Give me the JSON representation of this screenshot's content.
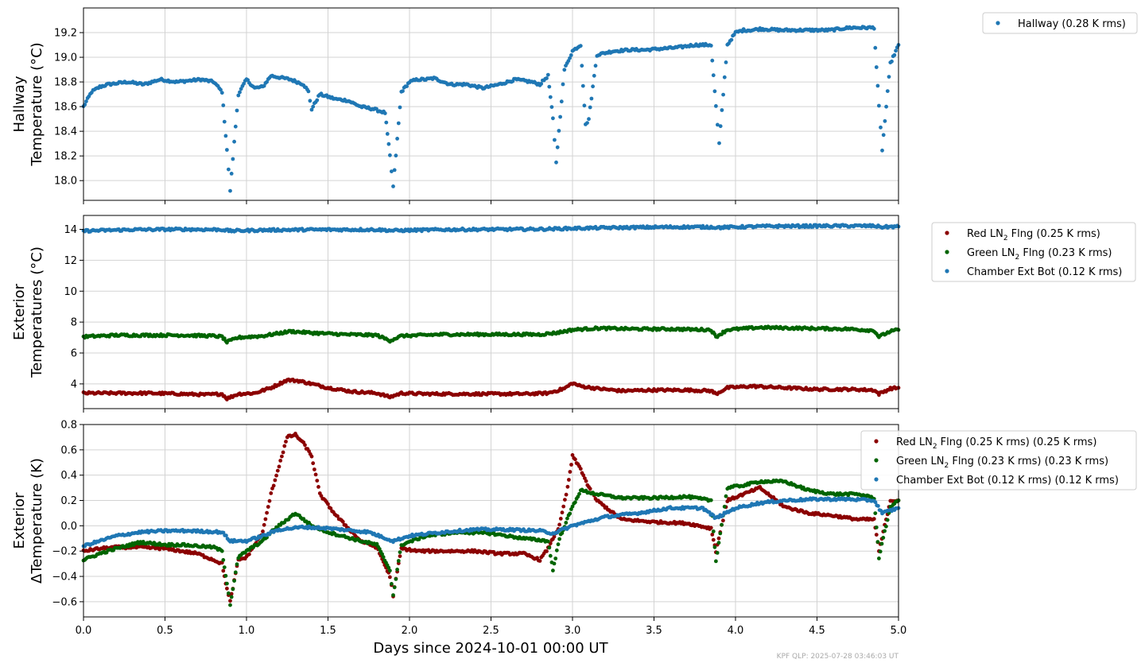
{
  "figure": {
    "xlabel": "Days since 2024-10-01 00:00 UT",
    "footer": "KPF QLP: 2025-07-28 03:46:03 UT",
    "xticks": [
      0.0,
      0.5,
      1.0,
      1.5,
      2.0,
      2.5,
      3.0,
      3.5,
      4.0,
      4.5,
      5.0
    ],
    "xtick_labels": [
      "0.0",
      "0.5",
      "1.0",
      "1.5",
      "2.0",
      "2.5",
      "3.0",
      "3.5",
      "4.0",
      "4.5",
      "5.0"
    ],
    "xlim": [
      0,
      5
    ]
  },
  "chart_data": [
    {
      "type": "scatter",
      "ylabel_lines": [
        "Hallway",
        "Temperature (°C)"
      ],
      "ylim": [
        17.84,
        19.4
      ],
      "yticks": [
        18.0,
        18.2,
        18.4,
        18.6,
        18.8,
        19.0,
        19.2
      ],
      "ytick_labels": [
        "18.0",
        "18.2",
        "18.4",
        "18.6",
        "18.8",
        "19.0",
        "19.2"
      ],
      "grid": true,
      "legend_position": "outside-right-top",
      "series": [
        {
          "name": "Hallway (0.28 K rms)",
          "color": "#1f77b4",
          "x": [
            0.0,
            0.05,
            0.1,
            0.15,
            0.27,
            0.37,
            0.47,
            0.57,
            0.72,
            0.8,
            0.85,
            0.88,
            0.9,
            0.95,
            1.0,
            1.05,
            1.1,
            1.15,
            1.27,
            1.35,
            1.38,
            1.4,
            1.45,
            1.55,
            1.62,
            1.7,
            1.78,
            1.85,
            1.88,
            1.9,
            1.95,
            2.0,
            2.05,
            2.1,
            2.15,
            2.25,
            2.35,
            2.45,
            2.55,
            2.65,
            2.75,
            2.8,
            2.85,
            2.88,
            2.9,
            2.95,
            3.0,
            3.05,
            3.08,
            3.1,
            3.15,
            3.25,
            3.35,
            3.45,
            3.55,
            3.65,
            3.75,
            3.8,
            3.85,
            3.88,
            3.9,
            3.95,
            4.0,
            4.05,
            4.1,
            4.15,
            4.28,
            4.38,
            4.48,
            4.58,
            4.7,
            4.78,
            4.85,
            4.88,
            4.9,
            4.95,
            5.0
          ],
          "y": [
            18.6,
            18.72,
            18.76,
            18.78,
            18.8,
            18.78,
            18.82,
            18.8,
            18.82,
            18.8,
            18.72,
            18.25,
            17.92,
            18.7,
            18.82,
            18.75,
            18.76,
            18.85,
            18.82,
            18.78,
            18.72,
            18.58,
            18.7,
            18.66,
            18.65,
            18.6,
            18.58,
            18.55,
            18.2,
            17.95,
            18.72,
            18.8,
            18.82,
            18.82,
            18.83,
            18.78,
            18.78,
            18.75,
            18.78,
            18.82,
            18.8,
            18.78,
            18.85,
            18.5,
            18.15,
            18.9,
            19.05,
            19.1,
            18.45,
            18.5,
            19.02,
            19.05,
            19.06,
            19.06,
            19.07,
            19.08,
            19.1,
            19.1,
            19.1,
            18.6,
            18.3,
            19.1,
            19.2,
            19.22,
            19.22,
            19.23,
            19.22,
            19.22,
            19.22,
            19.22,
            19.24,
            19.24,
            19.24,
            18.6,
            18.25,
            18.95,
            19.1
          ]
        }
      ]
    },
    {
      "type": "scatter",
      "ylabel_lines": [
        "Exterior",
        "Temperatures (°C)"
      ],
      "ylim": [
        2.4,
        14.9
      ],
      "yticks": [
        4,
        6,
        8,
        10,
        12,
        14
      ],
      "ytick_labels": [
        "4",
        "6",
        "8",
        "10",
        "12",
        "14"
      ],
      "grid": true,
      "legend_position": "outside-right-top",
      "series": [
        {
          "name_parts": [
            "Red LN",
            "2",
            " Flng (0.25 K rms)"
          ],
          "color": "#8b0000",
          "x": [
            0.0,
            0.2,
            0.4,
            0.6,
            0.75,
            0.85,
            0.88,
            0.95,
            1.05,
            1.15,
            1.25,
            1.32,
            1.4,
            1.5,
            1.65,
            1.8,
            1.88,
            1.95,
            2.1,
            2.3,
            2.5,
            2.7,
            2.85,
            2.95,
            3.0,
            3.05,
            3.15,
            3.3,
            3.5,
            3.7,
            3.85,
            3.88,
            3.95,
            4.1,
            4.3,
            4.5,
            4.7,
            4.85,
            4.88,
            4.95,
            5.0
          ],
          "y": [
            3.4,
            3.4,
            3.4,
            3.35,
            3.3,
            3.35,
            3.05,
            3.35,
            3.4,
            3.75,
            4.25,
            4.2,
            4.0,
            3.75,
            3.5,
            3.4,
            3.15,
            3.4,
            3.35,
            3.35,
            3.35,
            3.35,
            3.4,
            3.7,
            4.05,
            3.85,
            3.7,
            3.55,
            3.6,
            3.6,
            3.55,
            3.35,
            3.75,
            3.85,
            3.75,
            3.65,
            3.65,
            3.6,
            3.35,
            3.7,
            3.75
          ]
        },
        {
          "name_parts": [
            "Green LN",
            "2",
            " Flng (0.23 K rms)"
          ],
          "color": "#006400",
          "x": [
            0.0,
            0.2,
            0.4,
            0.6,
            0.8,
            0.85,
            0.88,
            0.95,
            1.1,
            1.27,
            1.4,
            1.6,
            1.8,
            1.88,
            1.95,
            2.2,
            2.5,
            2.8,
            2.9,
            3.0,
            3.15,
            3.4,
            3.6,
            3.85,
            3.88,
            3.95,
            4.15,
            4.4,
            4.7,
            4.85,
            4.88,
            4.95,
            5.0
          ],
          "y": [
            7.05,
            7.15,
            7.15,
            7.15,
            7.1,
            7.05,
            6.7,
            7.0,
            7.1,
            7.4,
            7.3,
            7.2,
            7.15,
            6.8,
            7.1,
            7.2,
            7.2,
            7.2,
            7.3,
            7.5,
            7.6,
            7.55,
            7.55,
            7.5,
            7.05,
            7.5,
            7.65,
            7.6,
            7.55,
            7.45,
            7.05,
            7.4,
            7.5
          ]
        },
        {
          "name": "Chamber Ext Bot (0.12 K rms)",
          "color": "#1f77b4",
          "x": [
            0.0,
            0.3,
            0.6,
            0.85,
            0.9,
            1.1,
            1.4,
            1.8,
            1.9,
            2.2,
            2.6,
            2.85,
            2.95,
            3.2,
            3.6,
            3.85,
            3.9,
            4.2,
            4.6,
            4.85,
            4.9,
            5.0
          ],
          "y": [
            13.9,
            13.98,
            14.0,
            13.98,
            13.9,
            13.95,
            13.98,
            13.98,
            13.92,
            13.98,
            14.0,
            14.02,
            14.05,
            14.1,
            14.15,
            14.15,
            14.12,
            14.2,
            14.22,
            14.22,
            14.15,
            14.18
          ]
        }
      ]
    },
    {
      "type": "scatter",
      "ylabel_lines": [
        "Exterior",
        "ΔTemperature (K)"
      ],
      "ylim": [
        -0.72,
        0.8
      ],
      "yticks": [
        -0.6,
        -0.4,
        -0.2,
        0.0,
        0.2,
        0.4,
        0.6,
        0.8
      ],
      "ytick_labels": [
        "−0.6",
        "−0.4",
        "−0.2",
        "0.0",
        "0.2",
        "0.4",
        "0.6",
        "0.8"
      ],
      "grid": true,
      "legend_position": "outside-right-top",
      "series": [
        {
          "name_parts": [
            "Red LN",
            "2",
            " Flng (0.25 K rms) (0.25 K rms)"
          ],
          "color": "#8b0000",
          "x": [
            0.0,
            0.1,
            0.2,
            0.35,
            0.5,
            0.6,
            0.7,
            0.8,
            0.85,
            0.88,
            0.9,
            0.95,
            1.0,
            1.05,
            1.1,
            1.15,
            1.25,
            1.3,
            1.35,
            1.4,
            1.45,
            1.55,
            1.7,
            1.8,
            1.88,
            1.9,
            1.95,
            2.05,
            2.2,
            2.4,
            2.55,
            2.7,
            2.8,
            2.85,
            2.88,
            2.92,
            2.97,
            3.0,
            3.05,
            3.1,
            3.15,
            3.3,
            3.5,
            3.7,
            3.85,
            3.88,
            3.95,
            4.05,
            4.15,
            4.3,
            4.45,
            4.6,
            4.75,
            4.85,
            4.88,
            4.95,
            5.0
          ],
          "y": [
            -0.2,
            -0.18,
            -0.17,
            -0.17,
            -0.18,
            -0.2,
            -0.22,
            -0.27,
            -0.3,
            -0.5,
            -0.6,
            -0.27,
            -0.25,
            -0.15,
            -0.05,
            0.25,
            0.7,
            0.72,
            0.65,
            0.55,
            0.25,
            0.08,
            -0.12,
            -0.17,
            -0.4,
            -0.55,
            -0.18,
            -0.2,
            -0.2,
            -0.2,
            -0.22,
            -0.22,
            -0.27,
            -0.18,
            -0.1,
            0.0,
            0.3,
            0.55,
            0.45,
            0.3,
            0.2,
            0.05,
            0.03,
            0.02,
            -0.02,
            -0.2,
            0.2,
            0.25,
            0.3,
            0.15,
            0.1,
            0.08,
            0.05,
            0.05,
            -0.2,
            0.2,
            0.2
          ]
        },
        {
          "name_parts": [
            "Green LN",
            "2",
            " Flng (0.23 K rms) (0.23 K rms)"
          ],
          "color": "#006400",
          "x": [
            0.0,
            0.1,
            0.2,
            0.35,
            0.5,
            0.6,
            0.7,
            0.8,
            0.85,
            0.88,
            0.9,
            0.95,
            1.0,
            1.1,
            1.15,
            1.25,
            1.3,
            1.4,
            1.5,
            1.7,
            1.8,
            1.88,
            1.9,
            1.95,
            2.1,
            2.3,
            2.5,
            2.7,
            2.85,
            2.88,
            2.92,
            3.0,
            3.05,
            3.15,
            3.3,
            3.5,
            3.7,
            3.85,
            3.88,
            3.95,
            4.05,
            4.15,
            4.3,
            4.45,
            4.6,
            4.75,
            4.85,
            4.88,
            4.95,
            5.0
          ],
          "y": [
            -0.27,
            -0.22,
            -0.18,
            -0.13,
            -0.15,
            -0.15,
            -0.16,
            -0.17,
            -0.2,
            -0.45,
            -0.62,
            -0.25,
            -0.2,
            -0.12,
            -0.05,
            0.05,
            0.1,
            0.0,
            -0.05,
            -0.12,
            -0.15,
            -0.35,
            -0.55,
            -0.15,
            -0.08,
            -0.05,
            -0.06,
            -0.1,
            -0.12,
            -0.35,
            -0.1,
            0.15,
            0.28,
            0.25,
            0.22,
            0.22,
            0.23,
            0.2,
            -0.28,
            0.3,
            0.32,
            0.35,
            0.35,
            0.28,
            0.25,
            0.25,
            0.22,
            -0.25,
            0.15,
            0.2
          ]
        },
        {
          "name": "Chamber Ext Bot (0.12 K rms) (0.12 K rms)",
          "color": "#1f77b4",
          "x": [
            0.0,
            0.1,
            0.2,
            0.35,
            0.5,
            0.65,
            0.85,
            0.9,
            1.0,
            1.1,
            1.2,
            1.35,
            1.5,
            1.75,
            1.9,
            2.0,
            2.2,
            2.4,
            2.6,
            2.8,
            2.88,
            3.0,
            3.2,
            3.4,
            3.6,
            3.8,
            3.88,
            4.0,
            4.15,
            4.3,
            4.5,
            4.7,
            4.85,
            4.9,
            5.0
          ],
          "y": [
            -0.16,
            -0.12,
            -0.08,
            -0.05,
            -0.04,
            -0.04,
            -0.05,
            -0.12,
            -0.12,
            -0.08,
            -0.03,
            -0.01,
            -0.02,
            -0.05,
            -0.12,
            -0.08,
            -0.05,
            -0.03,
            -0.03,
            -0.04,
            -0.06,
            0.0,
            0.07,
            0.1,
            0.14,
            0.14,
            0.06,
            0.14,
            0.18,
            0.2,
            0.21,
            0.21,
            0.2,
            0.1,
            0.14
          ]
        }
      ]
    }
  ]
}
